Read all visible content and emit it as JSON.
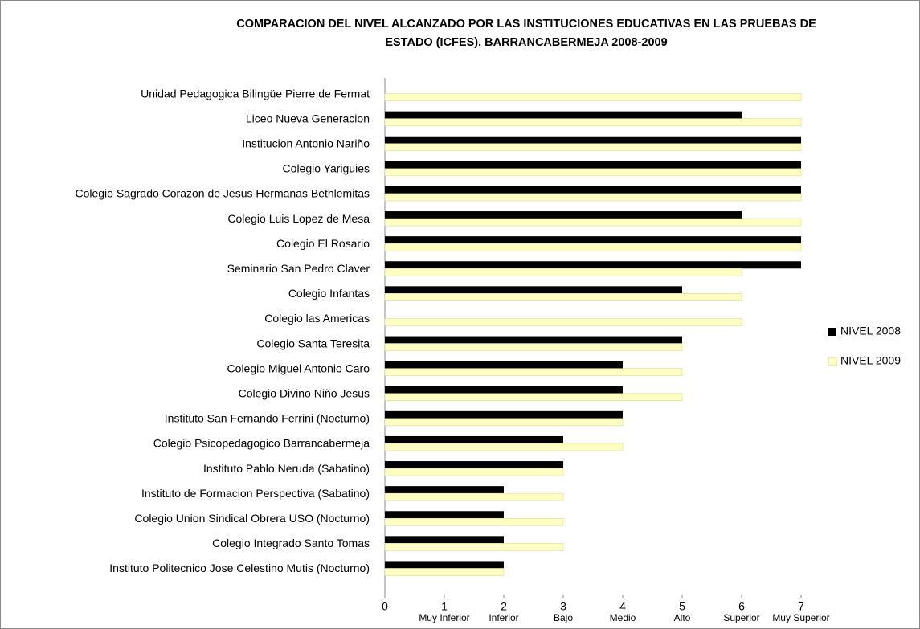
{
  "chart_data": {
    "type": "bar",
    "orientation": "horizontal",
    "title": [
      "COMPARACION DEL NIVEL ALCANZADO POR LAS INSTITUCIONES EDUCATIVAS EN LAS PRUEBAS DE",
      "ESTADO (ICFES). BARRANCABERMEJA 2008-2009"
    ],
    "categories": [
      "Unidad Pedagogica Bilingüe Pierre de Fermat",
      "Liceo Nueva Generacion",
      "Institucion Antonio Nariño",
      "Colegio Yariguies",
      "Colegio Sagrado Corazon de Jesus Hermanas Bethlemitas",
      "Colegio Luis Lopez de Mesa",
      "Colegio El Rosario",
      "Seminario San Pedro Claver",
      "Colegio Infantas",
      "Colegio las Americas",
      "Colegio Santa Teresita",
      "Colegio Miguel Antonio Caro",
      "Colegio Divino Niño Jesus",
      "Instituto San Fernando Ferrini (Nocturno)",
      "Colegio Psicopedagogico Barrancabermeja",
      "Instituto Pablo Neruda (Sabatino)",
      "Instituto de Formacion Perspectiva (Sabatino)",
      "Colegio Union Sindical Obrera USO (Nocturno)",
      "Colegio Integrado Santo Tomas",
      "Instituto Politecnico Jose Celestino Mutis (Nocturno)"
    ],
    "series": [
      {
        "name": "NIVEL 2008",
        "color": "#000000",
        "values": [
          null,
          6,
          7,
          7,
          7,
          6,
          7,
          7,
          5,
          null,
          5,
          4,
          4,
          4,
          3,
          3,
          2,
          2,
          2,
          2
        ]
      },
      {
        "name": "NIVEL 2009",
        "color": "#ffffc4",
        "values": [
          7,
          7,
          7,
          7,
          7,
          7,
          7,
          6,
          6,
          6,
          5,
          5,
          5,
          4,
          4,
          3,
          3,
          3,
          3,
          2
        ]
      }
    ],
    "xlim": [
      0,
      7
    ],
    "xticks": [
      0,
      1,
      2,
      3,
      4,
      5,
      6,
      7
    ],
    "level_labels": [
      "Muy Inferior",
      "Inferior",
      "Bajo",
      "Medio",
      "Alto",
      "Superior",
      "Muy Superior"
    ],
    "legend": "right"
  }
}
